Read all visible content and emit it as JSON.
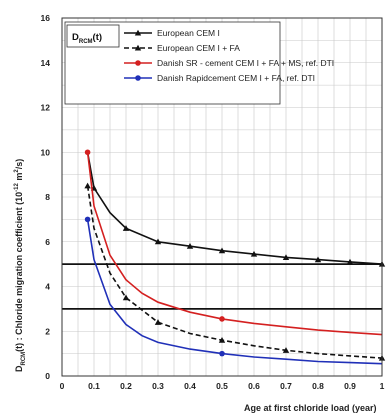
{
  "chart_data": {
    "type": "line",
    "xlabel": "Age at first chloride load (year)",
    "ylabel_main": "D",
    "ylabel_sub": "RCM",
    "ylabel_rest": "(t) : Chloride migration coefficient (10",
    "ylabel_sup": "-12",
    "ylabel_unit": " m",
    "ylabel_unit_sup": "2",
    "ylabel_end": "/s)",
    "xlim": [
      0,
      1
    ],
    "ylim": [
      0,
      16
    ],
    "xticks": [
      "0",
      "0.1",
      "0.2",
      "0.3",
      "0.4",
      "0.5",
      "0.6",
      "0.7",
      "0.8",
      "0.9",
      "1"
    ],
    "yticks": [
      "0",
      "2",
      "4",
      "6",
      "8",
      "10",
      "12",
      "14",
      "16"
    ],
    "grid": true,
    "legend_position": "top",
    "legend_title_main": "D",
    "legend_title_sub": "RCM",
    "legend_title_rest": "(t)",
    "thresholds": [
      5,
      3
    ],
    "series": [
      {
        "name": "European CEM I",
        "color": "#111111",
        "dash": "solid",
        "marker": "triangle",
        "x": [
          0.08,
          0.1,
          0.15,
          0.2,
          0.3,
          0.4,
          0.5,
          0.6,
          0.7,
          0.8,
          0.9,
          1.0
        ],
        "y": [
          10.0,
          8.4,
          7.3,
          6.6,
          6.0,
          5.8,
          5.6,
          5.45,
          5.3,
          5.2,
          5.1,
          5.0
        ],
        "marker_x": [
          0.1,
          0.2,
          0.3,
          0.4,
          0.5,
          0.6,
          0.7,
          0.8,
          0.9,
          1.0
        ]
      },
      {
        "name": "European CEM I + FA",
        "color": "#111111",
        "dash": "dashed",
        "marker": "triangle",
        "x": [
          0.08,
          0.1,
          0.15,
          0.2,
          0.3,
          0.4,
          0.5,
          0.6,
          0.7,
          0.8,
          0.9,
          1.0
        ],
        "y": [
          8.5,
          6.6,
          4.6,
          3.5,
          2.4,
          1.9,
          1.6,
          1.35,
          1.15,
          1.0,
          0.9,
          0.8
        ],
        "marker_x": [
          0.08,
          0.2,
          0.3,
          0.5,
          0.7,
          1.0
        ]
      },
      {
        "name": "Danish SR - cement CEM I + FA + MS, ref. DTI",
        "color": "#d42020",
        "dash": "solid",
        "marker": "circle",
        "x": [
          0.08,
          0.1,
          0.15,
          0.2,
          0.25,
          0.3,
          0.4,
          0.5,
          0.6,
          0.7,
          0.8,
          0.9,
          1.0
        ],
        "y": [
          10.0,
          7.6,
          5.4,
          4.3,
          3.7,
          3.3,
          2.85,
          2.55,
          2.35,
          2.2,
          2.05,
          1.95,
          1.85
        ],
        "marker_x": [
          0.08,
          0.5
        ]
      },
      {
        "name": "Danish Rapidcement CEM I + FA, ref. DTI",
        "color": "#2030b8",
        "dash": "solid",
        "marker": "circle",
        "x": [
          0.08,
          0.1,
          0.15,
          0.2,
          0.25,
          0.3,
          0.4,
          0.5,
          0.6,
          0.7,
          0.8,
          0.9,
          1.0
        ],
        "y": [
          7.0,
          5.2,
          3.2,
          2.3,
          1.8,
          1.5,
          1.2,
          1.0,
          0.85,
          0.75,
          0.65,
          0.6,
          0.55
        ],
        "marker_x": [
          0.08,
          0.5
        ]
      }
    ]
  }
}
